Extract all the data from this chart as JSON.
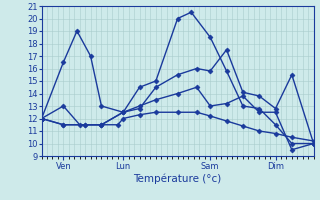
{
  "background_color": "#ceeaea",
  "grid_color": "#aacccc",
  "line_color": "#1a3a9c",
  "marker": "D",
  "markersize": 2.5,
  "linewidth": 1.0,
  "xlim": [
    0,
    100
  ],
  "ylim": [
    9,
    21
  ],
  "yticks": [
    9,
    10,
    11,
    12,
    13,
    14,
    15,
    16,
    17,
    18,
    19,
    20,
    21
  ],
  "xlabel": "Température (°c)",
  "xlabel_fontsize": 7.5,
  "tick_fontsize": 6.0,
  "day_ticks": [
    8,
    30,
    62,
    86
  ],
  "day_labels": [
    "Ven",
    "Lun",
    "Sam",
    "Dim"
  ],
  "lines": [
    [
      0,
      12.0,
      8,
      11.5,
      16,
      11.5,
      22,
      11.5,
      28,
      11.5,
      30,
      12.0,
      36,
      12.3,
      42,
      12.5,
      50,
      12.5,
      57,
      12.5,
      62,
      12.2,
      68,
      11.8,
      74,
      11.4,
      80,
      11.0,
      86,
      10.8,
      92,
      10.5,
      100,
      10.2
    ],
    [
      0,
      12.0,
      8,
      16.5,
      13,
      19.0,
      18,
      17.0,
      22,
      13.0,
      30,
      12.5,
      36,
      14.5,
      42,
      15.0,
      50,
      20.0,
      55,
      20.5,
      62,
      18.5,
      68,
      15.8,
      74,
      13.0,
      80,
      12.8,
      86,
      11.5,
      92,
      10.0,
      100,
      10.0
    ],
    [
      0,
      12.0,
      8,
      13.0,
      14,
      11.5,
      22,
      11.5,
      30,
      12.5,
      36,
      12.8,
      42,
      14.5,
      50,
      15.5,
      57,
      16.0,
      62,
      15.8,
      68,
      17.5,
      74,
      14.1,
      80,
      13.8,
      86,
      12.8,
      92,
      15.5,
      100,
      10.0
    ],
    [
      0,
      12.0,
      8,
      11.5,
      16,
      11.5,
      22,
      11.5,
      30,
      12.5,
      36,
      13.0,
      42,
      13.5,
      50,
      14.0,
      57,
      14.5,
      62,
      13.0,
      68,
      13.2,
      74,
      13.8,
      80,
      12.5,
      86,
      12.5,
      92,
      9.5,
      100,
      10.0
    ]
  ]
}
